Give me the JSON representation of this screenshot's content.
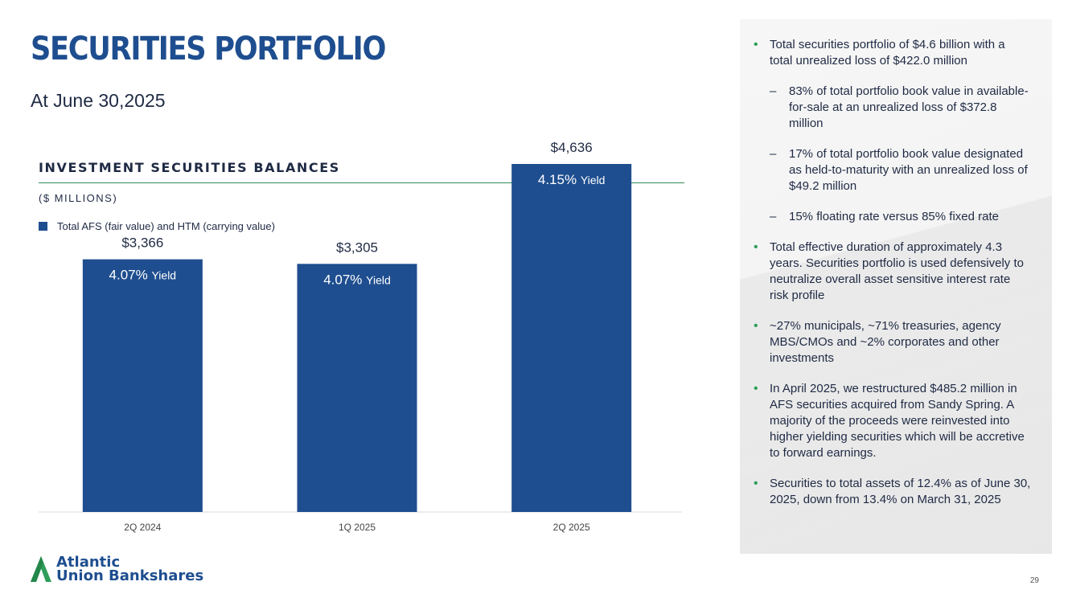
{
  "title": "SECURITIES PORTFOLIO",
  "subtitle": "At June 30,2025",
  "chart_data": {
    "type": "bar",
    "title": "INVESTMENT SECURITIES BALANCES",
    "units": "($ MILLIONS)",
    "legend": "Total AFS (fair value) and HTM (carrying value)",
    "categories": [
      "2Q 2024",
      "1Q 2025",
      "2Q 2025"
    ],
    "values": [
      3366,
      3305,
      4636
    ],
    "value_labels": [
      "$3,366",
      "$3,305",
      "$4,636"
    ],
    "yield_values": [
      "4.07%",
      "4.07%",
      "4.15%"
    ],
    "yield_word": "Yield",
    "ylim": [
      0,
      5000
    ],
    "grid": false,
    "colors": {
      "bar": "#1e4e8f",
      "axis": "#d9d9d9"
    }
  },
  "bullets": [
    {
      "level": 1,
      "text": "Total securities portfolio of $4.6 billion with a total unrealized loss of $422.0 million"
    },
    {
      "level": 2,
      "text": "83% of total portfolio book value in available-for-sale at an unrealized loss of $372.8 million"
    },
    {
      "level": 2,
      "text": "17% of total portfolio book value designated as held-to-maturity with an unrealized loss of $49.2 million"
    },
    {
      "level": 2,
      "text": "15% floating rate versus 85% fixed rate"
    },
    {
      "level": 1,
      "text": "Total effective duration of approximately 4.3 years. Securities portfolio is used defensively to neutralize overall asset sensitive interest rate risk profile"
    },
    {
      "level": 1,
      "text": "~27% municipals, ~71% treasuries, agency MBS/CMOs and ~2% corporates and other investments"
    },
    {
      "level": 1,
      "text": "In April 2025, we restructured $485.2 million in AFS securities acquired from Sandy Spring. A majority of the proceeds were reinvested into higher yielding securities which will be accretive to forward earnings."
    },
    {
      "level": 1,
      "text": "Securities to total assets of 12.4% as of June 30, 2025, down from 13.4% on March 31, 2025"
    }
  ],
  "logo": {
    "line1": "Atlantic",
    "line2": "Union Bankshares",
    "icon": "logo-mark-icon"
  },
  "page_number": "29"
}
